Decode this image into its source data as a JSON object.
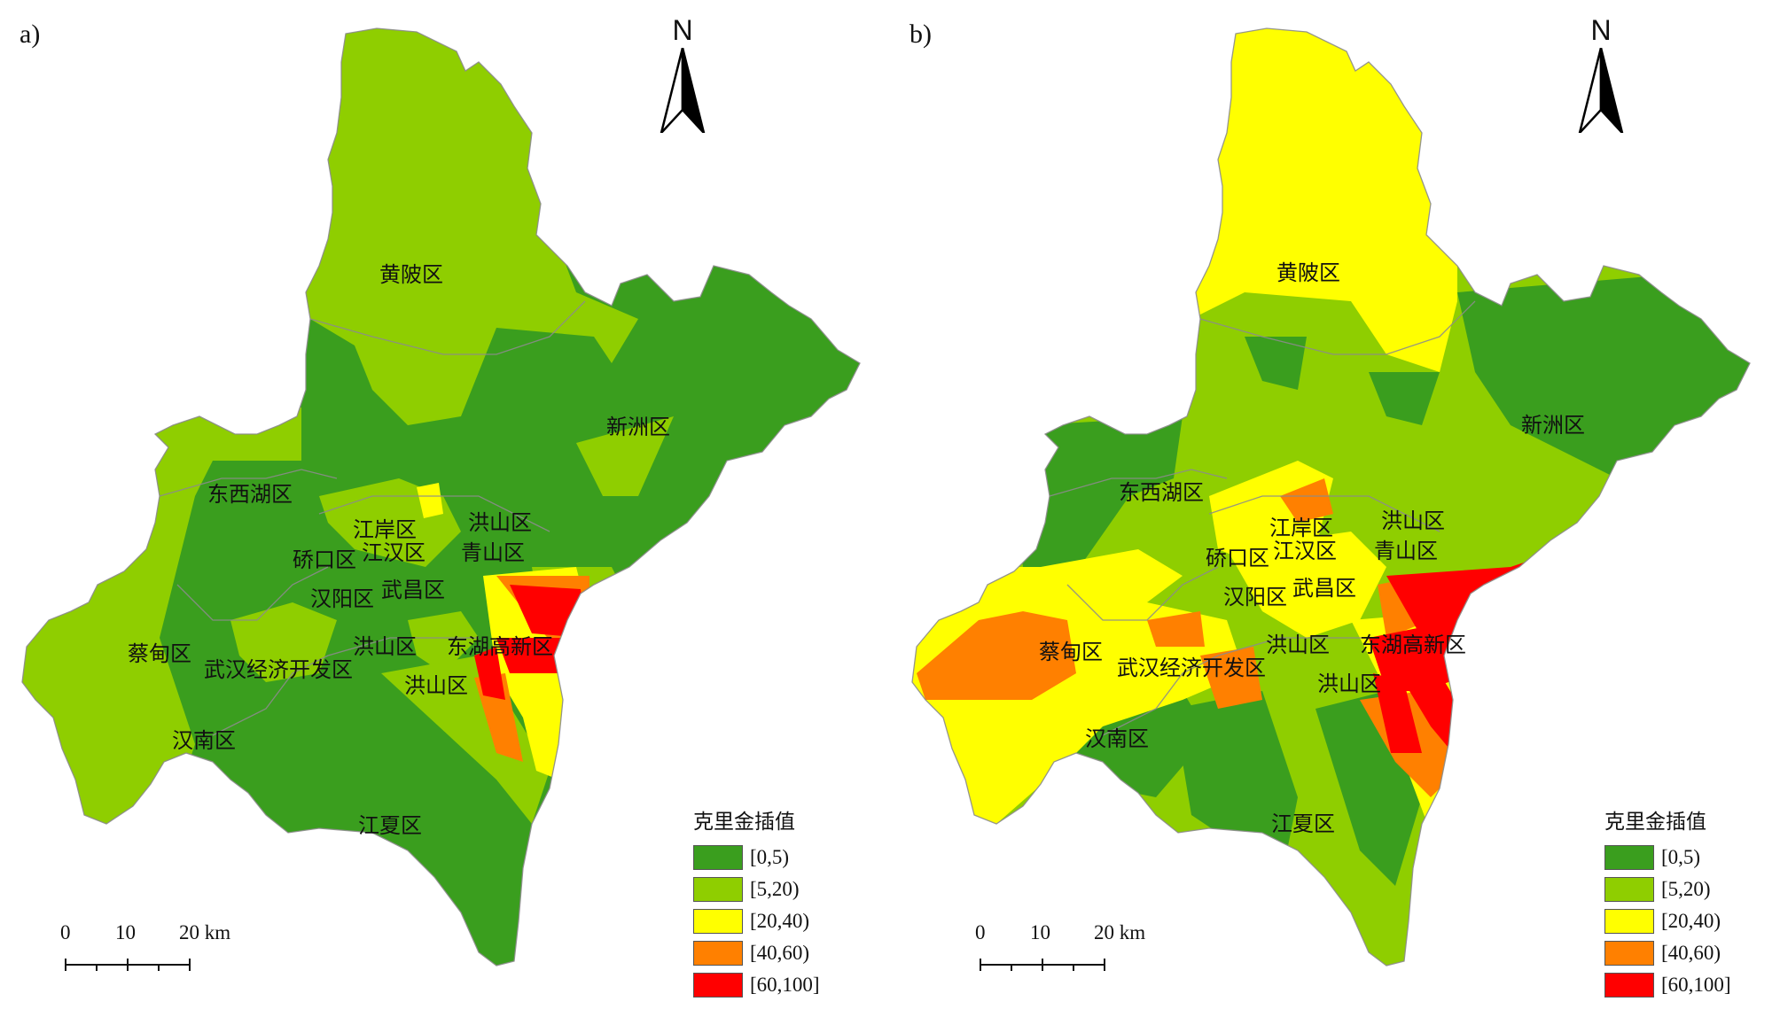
{
  "colors": {
    "c0": "#3a9e1e",
    "c1": "#8fce00",
    "c2": "#ffff00",
    "c3": "#ff8000",
    "c4": "#ff0000",
    "outline": "#8c8c8c"
  },
  "panels": [
    {
      "tag": "a)",
      "districts": {
        "huangpi": "黄陂区",
        "xinzhou": "新洲区",
        "dongxihu": "东西湖区",
        "jiangan": "江岸区",
        "hongshan_n": "洪山区",
        "qiaokou": "硚口区",
        "jianghan": "江汉区",
        "qingshan": "青山区",
        "hanyang": "汉阳区",
        "wuchang": "武昌区",
        "caidian": "蔡甸区",
        "hongshan_c": "洪山区",
        "donghu": "东湖高新区",
        "econdev": "武汉经济开发区",
        "hongshan_s": "洪山区",
        "hannan": "汉南区",
        "jiangxia": "江夏区"
      }
    },
    {
      "tag": "b)",
      "districts": {
        "huangpi": "黄陂区",
        "xinzhou": "新洲区",
        "dongxihu": "东西湖区",
        "jiangan": "江岸区",
        "hongshan_n": "洪山区",
        "qiaokou": "硚口区",
        "jianghan": "江汉区",
        "qingshan": "青山区",
        "hanyang": "汉阳区",
        "wuchang": "武昌区",
        "caidian": "蔡甸区",
        "hongshan_c": "洪山区",
        "donghu": "东湖高新区",
        "econdev": "武汉经济开发区",
        "hongshan_s": "洪山区",
        "hannan": "汉南区",
        "jiangxia": "江夏区"
      }
    }
  ],
  "north_label": "N",
  "legend": {
    "title": "克里金插值",
    "classes": [
      {
        "label": "[0,5)",
        "color": "#3a9e1e"
      },
      {
        "label": "[5,20)",
        "color": "#8fce00"
      },
      {
        "label": "[20,40)",
        "color": "#ffff00"
      },
      {
        "label": "[40,60)",
        "color": "#ff8000"
      },
      {
        "label": "[60,100]",
        "color": "#ff0000"
      }
    ]
  },
  "scale": {
    "zero": "0",
    "mid": "10",
    "end": "20 km"
  }
}
